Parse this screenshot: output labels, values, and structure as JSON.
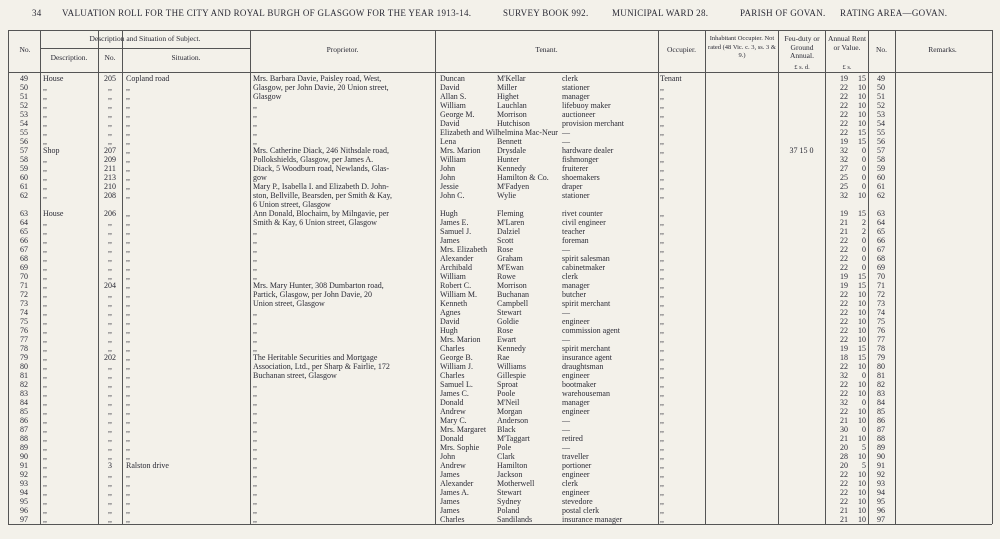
{
  "header": {
    "page": "34",
    "title": "VALUATION ROLL FOR THE CITY AND ROYAL BURGH OF GLASGOW FOR THE YEAR 1913-14.",
    "survey": "SURVEY BOOK 992.",
    "ward": "MUNICIPAL WARD 28.",
    "parish": "PARISH OF GOVAN.",
    "area": "RATING AREA—GOVAN."
  },
  "columns": {
    "no": "No.",
    "subject": "Description and Situation of Subject.",
    "description": "Description.",
    "house_no": "No.",
    "situation": "Situation.",
    "proprietor": "Proprietor.",
    "tenant": "Tenant.",
    "occupier": "Occupier.",
    "inhabitant": "Inhabitant Occupier. Not rated (48 Vic. c. 3, ss. 3 & 9.)",
    "feu": "Feu-duty or Ground Annual.",
    "feu_units": "£ s. d.",
    "rent": "Annual Rent or Value.",
    "rent_units": "£ s.",
    "no2": "No.",
    "remarks": "Remarks."
  },
  "table": {
    "rows": [
      [
        49,
        "House",
        "205",
        "Copland road",
        "Mrs. Barbara Davie, Paisley road, West,",
        "Duncan",
        "M'Kellar",
        "clerk",
        "Tenant",
        null,
        19,
        15
      ],
      [
        50,
        ",,",
        ",,",
        ",,",
        "Glasgow, per John Davie, 20 Union street,",
        "David",
        "Miller",
        "stationer",
        ",,",
        null,
        22,
        10
      ],
      [
        51,
        ",,",
        ",,",
        ",,",
        "Glasgow",
        "Allan S.",
        "Highet",
        "manager",
        ",,",
        null,
        22,
        10
      ],
      [
        52,
        ",,",
        ",,",
        ",,",
        ",,",
        "William",
        "Lauchlan",
        "lifebuoy maker",
        ",,",
        null,
        22,
        10
      ],
      [
        53,
        ",,",
        ",,",
        ",,",
        ",,",
        "George M.",
        "Morrison",
        "auctioneer",
        ",,",
        null,
        22,
        10
      ],
      [
        54,
        ",,",
        ",,",
        ",,",
        ",,",
        "David",
        "Hutchison",
        "provision merchant",
        ",,",
        null,
        22,
        10
      ],
      [
        55,
        ",,",
        ",,",
        ",,",
        ",,",
        "Elizabeth and Wilhelmina Mac-Neur",
        null,
        "—",
        ",,",
        null,
        22,
        15
      ],
      [
        56,
        ",,",
        ",,",
        ",,",
        ",,",
        "Lena",
        "Bennett",
        "—",
        ",,",
        null,
        19,
        15
      ],
      [
        57,
        "Shop",
        "207",
        ",,",
        "Mrs. Catherine Diack, 246 Nithsdale road,",
        "Mrs. Marion",
        "Drysdale",
        "hardware dealer",
        ",,",
        "37  15  0",
        32,
        0
      ],
      [
        58,
        ",,",
        "209",
        ",,",
        "Pollokshields, Glasgow, per James A.",
        "William",
        "Hunter",
        "fishmonger",
        ",,",
        null,
        32,
        0
      ],
      [
        59,
        ",,",
        "211",
        ",,",
        "Diack, 5 Woodburn road, Newlands, Glas-",
        "John",
        "Kennedy",
        "fruiterer",
        ",,",
        null,
        27,
        0
      ],
      [
        60,
        ",,",
        "213",
        ",,",
        "gow",
        "John",
        "Hamilton & Co.",
        "shoemakers",
        ",,",
        null,
        25,
        0
      ],
      [
        61,
        ",,",
        "210",
        ",,",
        "Mary P., Isabella I. and Elizabeth D. John-",
        "Jessie",
        "M'Fadyen",
        "draper",
        ",,",
        null,
        25,
        0
      ],
      [
        62,
        ",,",
        "208",
        ",,",
        "ston, Bellville, Bearsden, per Smith & Kay,",
        "John C.",
        "Wylie",
        "stationer",
        ",,",
        null,
        32,
        10
      ],
      [
        null,
        null,
        null,
        null,
        "6 Union street, Glasgow",
        null,
        null,
        null,
        null,
        null,
        null,
        null
      ],
      [
        63,
        "House",
        "206",
        ",,",
        "Ann Donald, Blochairn, by Milngavie, per",
        "Hugh",
        "Fleming",
        "rivet counter",
        ",,",
        null,
        19,
        15
      ],
      [
        64,
        ",,",
        ",,",
        ",,",
        "Smith & Kay, 6 Union street, Glasgow",
        "James E.",
        "M'Laren",
        "civil engineer",
        ",,",
        null,
        21,
        2
      ],
      [
        65,
        ",,",
        ",,",
        ",,",
        ",,",
        "Samuel J.",
        "Dalziel",
        "teacher",
        ",,",
        null,
        21,
        2
      ],
      [
        66,
        ",,",
        ",,",
        ",,",
        ",,",
        "James",
        "Scott",
        "foreman",
        ",,",
        null,
        22,
        0
      ],
      [
        67,
        ",,",
        ",,",
        ",,",
        ",,",
        "Mrs. Elizabeth",
        "Rose",
        "—",
        ",,",
        null,
        22,
        0
      ],
      [
        68,
        ",,",
        ",,",
        ",,",
        ",,",
        "Alexander",
        "Graham",
        "spirit salesman",
        ",,",
        null,
        22,
        0
      ],
      [
        69,
        ",,",
        ",,",
        ",,",
        ",,",
        "Archibald",
        "M'Ewan",
        "cabinetmaker",
        ",,",
        null,
        22,
        0
      ],
      [
        70,
        ",,",
        ",,",
        ",,",
        ",,",
        "William",
        "Rowe",
        "clerk",
        ",,",
        null,
        19,
        15
      ],
      [
        71,
        ",,",
        "204",
        ",,",
        "Mrs. Mary Hunter, 308 Dumbarton road,",
        "Robert C.",
        "Morrison",
        "manager",
        ",,",
        null,
        19,
        15
      ],
      [
        72,
        ",,",
        ",,",
        ",,",
        "Partick, Glasgow, per John Davie, 20",
        "William M.",
        "Buchanan",
        "butcher",
        ",,",
        null,
        22,
        10
      ],
      [
        73,
        ",,",
        ",,",
        ",,",
        "Union street, Glasgow",
        "Kenneth",
        "Campbell",
        "spirit merchant",
        ",,",
        null,
        22,
        10
      ],
      [
        74,
        ",,",
        ",,",
        ",,",
        ",,",
        "Agnes",
        "Stewart",
        "—",
        ",,",
        null,
        22,
        10
      ],
      [
        75,
        ",,",
        ",,",
        ",,",
        ",,",
        "David",
        "Goldie",
        "engineer",
        ",,",
        null,
        22,
        10
      ],
      [
        76,
        ",,",
        ",,",
        ",,",
        ",,",
        "Hugh",
        "Rose",
        "commission agent",
        ",,",
        null,
        22,
        10
      ],
      [
        77,
        ",,",
        ",,",
        ",,",
        ",,",
        "Mrs. Marion",
        "Ewart",
        "—",
        ",,",
        null,
        22,
        10
      ],
      [
        78,
        ",,",
        ",,",
        ",,",
        ",,",
        "Charles",
        "Kennedy",
        "spirit merchant",
        ",,",
        null,
        19,
        15
      ],
      [
        79,
        ",,",
        "202",
        ",,",
        "The Heritable Securities and Mortgage",
        "George B.",
        "Rae",
        "insurance agent",
        ",,",
        null,
        18,
        15
      ],
      [
        80,
        ",,",
        ",,",
        ",,",
        "Association, Ltd., per Sharp & Fairlie, 172",
        "William J.",
        "Williams",
        "draughtsman",
        ",,",
        null,
        22,
        10
      ],
      [
        81,
        ",,",
        ",,",
        ",,",
        "Buchanan street, Glasgow",
        "Charles",
        "Gillespie",
        "engineer",
        ",,",
        null,
        32,
        0
      ],
      [
        82,
        ",,",
        ",,",
        ",,",
        ",,",
        "Samuel L.",
        "Sproat",
        "bootmaker",
        ",,",
        null,
        22,
        10
      ],
      [
        83,
        ",,",
        ",,",
        ",,",
        ",,",
        "James C.",
        "Poole",
        "warehouseman",
        ",,",
        null,
        22,
        10
      ],
      [
        84,
        ",,",
        ",,",
        ",,",
        ",,",
        "Donald",
        "M'Neil",
        "manager",
        ",,",
        null,
        32,
        0
      ],
      [
        85,
        ",,",
        ",,",
        ",,",
        ",,",
        "Andrew",
        "Morgan",
        "engineer",
        ",,",
        null,
        22,
        10
      ],
      [
        86,
        ",,",
        ",,",
        ",,",
        ",,",
        "Mary C.",
        "Anderson",
        "—",
        ",,",
        null,
        21,
        10
      ],
      [
        87,
        ",,",
        ",,",
        ",,",
        ",,",
        "Mrs. Margaret",
        "Black",
        "—",
        ",,",
        null,
        30,
        0
      ],
      [
        88,
        ",,",
        ",,",
        ",,",
        ",,",
        "Donald",
        "M'Taggart",
        "retired",
        ",,",
        null,
        21,
        10
      ],
      [
        89,
        ",,",
        ",,",
        ",,",
        ",,",
        "Mrs. Sophie",
        "Pole",
        "—",
        ",,",
        null,
        20,
        5
      ],
      [
        90,
        ",,",
        ",,",
        ",,",
        ",,",
        "John",
        "Clark",
        "traveller",
        ",,",
        null,
        28,
        10
      ],
      [
        91,
        ",,",
        "3",
        "Ralston drive",
        ",,",
        "Andrew",
        "Hamilton",
        "portioner",
        ",,",
        null,
        20,
        5
      ],
      [
        92,
        ",,",
        ",,",
        ",,",
        ",,",
        "James",
        "Jackson",
        "engineer",
        ",,",
        null,
        22,
        10
      ],
      [
        93,
        ",,",
        ",,",
        ",,",
        ",,",
        "Alexander",
        "Motherwell",
        "clerk",
        ",,",
        null,
        22,
        10
      ],
      [
        94,
        ",,",
        ",,",
        ",,",
        ",,",
        "James A.",
        "Stewart",
        "engineer",
        ",,",
        null,
        22,
        10
      ],
      [
        95,
        ",,",
        ",,",
        ",,",
        ",,",
        "James",
        "Sydney",
        "stevedore",
        ",,",
        null,
        22,
        10
      ],
      [
        96,
        ",,",
        ",,",
        ",,",
        ",,",
        "James",
        "Poland",
        "postal clerk",
        ",,",
        null,
        21,
        10
      ],
      [
        97,
        ",,",
        ",,",
        ",,",
        ",,",
        "Charles",
        "Sandilands",
        "insurance manager",
        ",,",
        null,
        21,
        10
      ]
    ]
  }
}
